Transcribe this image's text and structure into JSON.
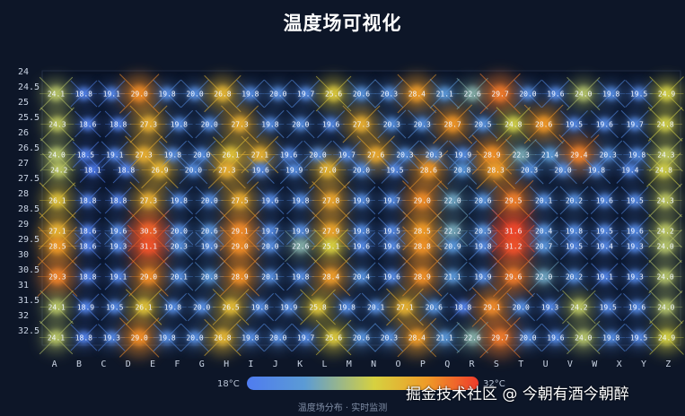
{
  "page": {
    "title": "温度场可视化",
    "footer": "温度场分布 · 实时监测",
    "watermark": "掘金技术社区 @ 今朝有酒今朝醉"
  },
  "chart_data": {
    "type": "heatmap",
    "title": "温度场可视化",
    "x_categories": [
      "A",
      "B",
      "C",
      "D",
      "E",
      "F",
      "G",
      "H",
      "I",
      "J",
      "K",
      "L",
      "M",
      "N",
      "O",
      "P",
      "Q",
      "R",
      "S",
      "T",
      "U",
      "V",
      "W",
      "X",
      "Y",
      "Z"
    ],
    "y_categories": [
      "24",
      "24.5",
      "25",
      "25.5",
      "26",
      "26.5",
      "27",
      "27.5",
      "28",
      "28.5",
      "29",
      "29.5",
      "30",
      "30.5",
      "31",
      "31.5",
      "32",
      "32.5"
    ],
    "visual_map": {
      "min": 18,
      "max": 32,
      "min_label": "18°C",
      "max_label": "32°C",
      "colors": [
        "#4f7cf0",
        "#5b9bd5",
        "#d6d140",
        "#ef9a28",
        "#ef3b2b"
      ]
    },
    "rows": [
      {
        "y": "24.5",
        "values": [
          24.1,
          18.8,
          19.1,
          29.0,
          19.8,
          20.0,
          26.8,
          19.8,
          20.0,
          19.7,
          25.6,
          20.6,
          20.3,
          28.4,
          21.1,
          22.6,
          29.7,
          20.0,
          19.6,
          24.0,
          19.8,
          19.5,
          24.9
        ]
      },
      {
        "y": "25.5",
        "values": [
          24.3,
          18.6,
          18.8,
          27.3,
          19.8,
          20.0,
          27.3,
          19.8,
          20.0,
          19.6,
          27.3,
          20.3,
          20.3,
          28.7,
          20.5,
          24.8,
          28.6,
          19.5,
          19.6,
          19.7,
          24.8
        ]
      },
      {
        "y": "26.5",
        "values": [
          24.0,
          18.5,
          19.1,
          27.3,
          19.8,
          20.0,
          26.1,
          27.1,
          19.6,
          20.0,
          19.7,
          27.6,
          20.3,
          20.3,
          19.9,
          28.9,
          22.3,
          21.4,
          29.4,
          20.3,
          19.8,
          24.3
        ]
      },
      {
        "y": "27",
        "values": [
          24.2,
          18.1,
          18.8,
          26.9,
          20.0,
          27.3,
          19.6,
          19.9,
          27.0,
          20.0,
          19.5,
          28.6,
          20.8,
          28.3,
          20.3,
          20.0,
          19.8,
          19.4,
          24.8
        ]
      },
      {
        "y": "28",
        "values": [
          26.1,
          18.8,
          18.8,
          27.3,
          19.8,
          20.0,
          27.5,
          19.6,
          19.8,
          27.8,
          19.9,
          19.7,
          29.0,
          22.0,
          20.6,
          29.5,
          20.1,
          20.2,
          19.6,
          19.5,
          24.3
        ]
      },
      {
        "y": "29",
        "values": [
          27.1,
          18.6,
          19.6,
          30.5,
          20.0,
          20.6,
          29.1,
          19.7,
          19.9,
          27.9,
          19.8,
          19.5,
          28.5,
          22.2,
          20.5,
          31.6,
          20.4,
          19.8,
          19.5,
          19.6,
          24.2
        ]
      },
      {
        "y": "29.5",
        "values": [
          28.5,
          18.6,
          19.3,
          31.1,
          20.3,
          19.9,
          29.0,
          20.0,
          22.6,
          25.1,
          19.6,
          19.6,
          28.8,
          20.9,
          19.8,
          31.2,
          20.7,
          19.5,
          19.4,
          19.3,
          24.0
        ]
      },
      {
        "y": "30.5",
        "values": [
          29.3,
          18.8,
          19.1,
          29.0,
          20.1,
          20.8,
          28.9,
          20.1,
          19.8,
          28.4,
          20.4,
          19.6,
          28.9,
          21.1,
          19.9,
          29.6,
          22.0,
          20.2,
          19.1,
          19.3,
          24.0
        ]
      },
      {
        "y": "31.5",
        "values": [
          24.1,
          18.9,
          19.5,
          26.1,
          19.8,
          20.0,
          26.5,
          19.8,
          19.9,
          25.8,
          19.8,
          20.1,
          27.1,
          20.6,
          18.8,
          29.1,
          20.0,
          19.3,
          24.2,
          19.5,
          19.6,
          24.0
        ]
      },
      {
        "y": "32.5",
        "values": [
          24.1,
          18.8,
          19.3,
          29.0,
          19.8,
          20.0,
          26.8,
          19.8,
          20.0,
          19.7,
          25.6,
          20.6,
          20.3,
          28.4,
          21.1,
          22.6,
          29.7,
          20.0,
          19.6,
          24.0,
          19.8,
          19.5,
          24.9
        ]
      }
    ]
  }
}
